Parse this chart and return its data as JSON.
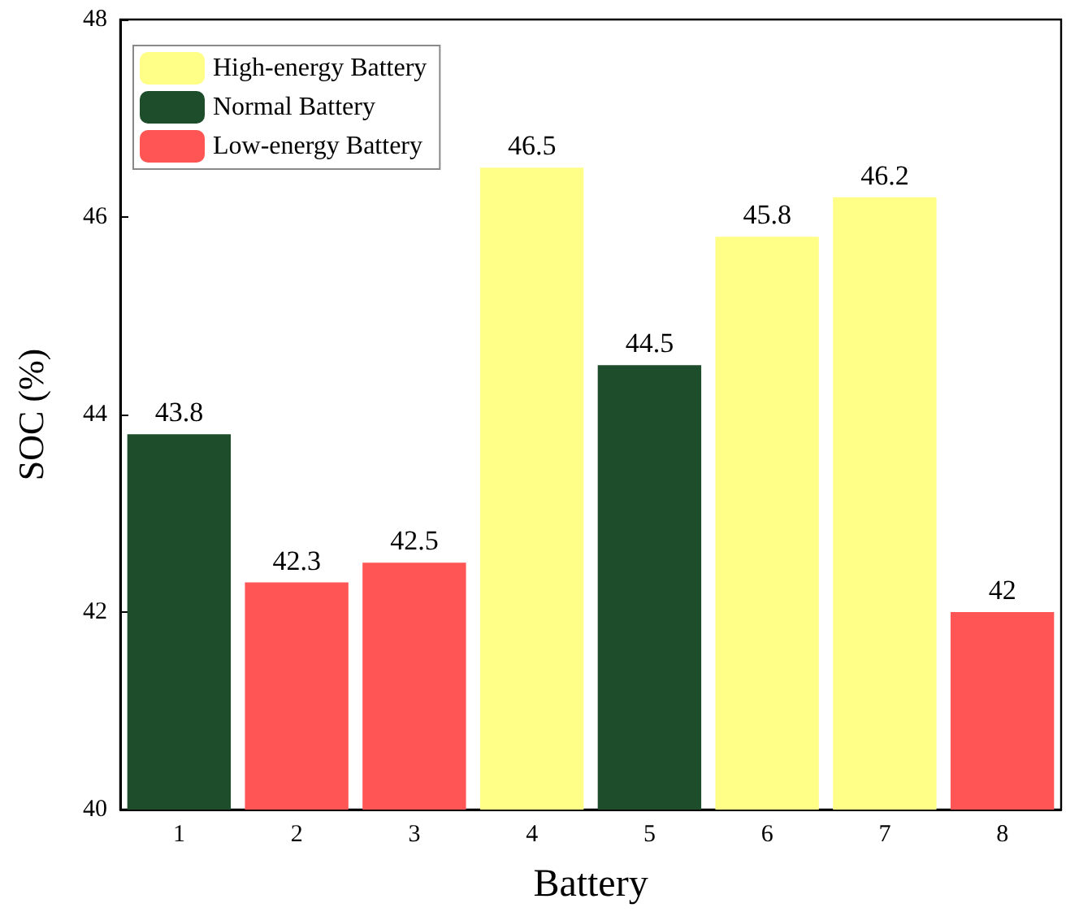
{
  "chart_data": {
    "type": "bar",
    "xlabel": "Battery",
    "ylabel": "SOC (%)",
    "categories": [
      "1",
      "2",
      "3",
      "4",
      "5",
      "6",
      "7",
      "8"
    ],
    "series": [
      {
        "name": "High-energy Battery",
        "color": "#ffff88",
        "values": [
          null,
          null,
          null,
          46.5,
          null,
          45.8,
          46.2,
          null
        ]
      },
      {
        "name": "Normal Battery",
        "color": "#1e4d2b",
        "values": [
          43.8,
          null,
          null,
          null,
          44.5,
          null,
          null,
          null
        ]
      },
      {
        "name": "Low-energy Battery",
        "color": "#ff5555",
        "values": [
          null,
          42.3,
          42.5,
          null,
          null,
          null,
          null,
          42
        ]
      }
    ],
    "ylim": [
      40,
      48
    ],
    "yticks": [
      40,
      42,
      44,
      46,
      48
    ],
    "grid": false,
    "legend": "top left",
    "data_labels": true
  }
}
